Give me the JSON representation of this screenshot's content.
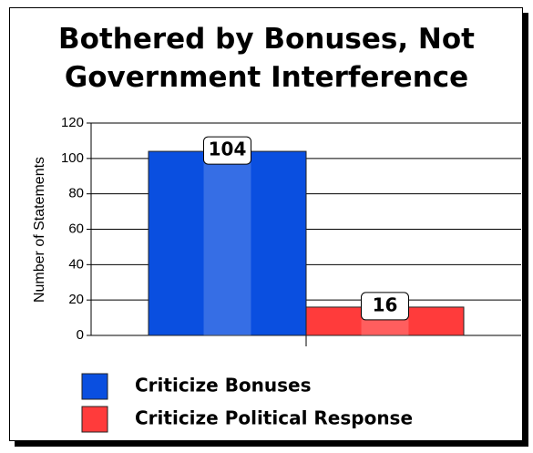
{
  "chart_data": {
    "type": "bar",
    "title": "Bothered by Bonuses, Not Government Interference",
    "y_label": "Number of Statements",
    "categories": [
      null
    ],
    "series": [
      {
        "name": "Criticize Bonuses",
        "color": "#0a4fe0",
        "values": [
          104
        ]
      },
      {
        "name": "Criticize Political Response",
        "color": "#ff3b3b",
        "values": [
          16
        ]
      }
    ],
    "ylim": [
      0,
      120
    ],
    "yticks": [
      0,
      20,
      40,
      60,
      80,
      100,
      120
    ],
    "grid": true
  }
}
